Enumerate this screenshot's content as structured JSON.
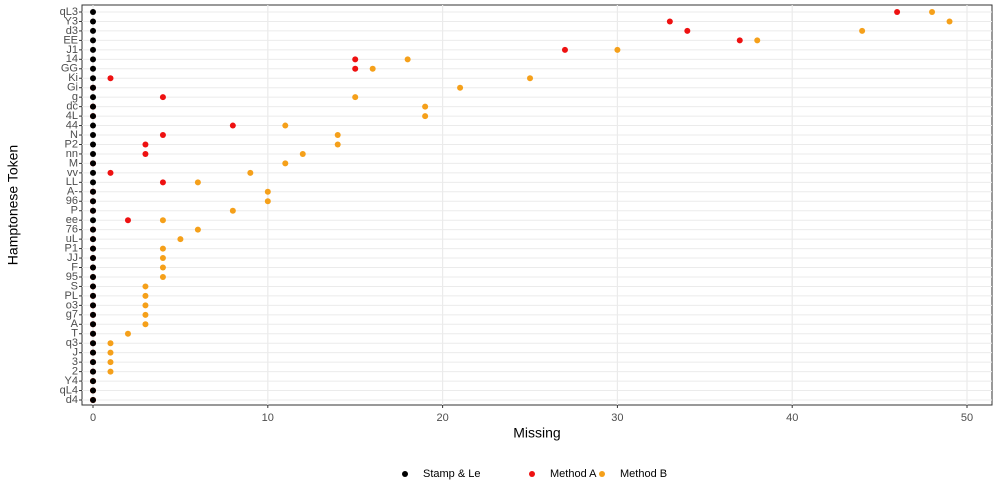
{
  "chart_data": {
    "type": "dot",
    "x_label": "Missing",
    "y_label": "Hamptonese Token",
    "categories": [
      "qL3",
      "Y3",
      "d3",
      "EE",
      "J1",
      "14",
      "GG",
      "Ki",
      "Gi",
      "g",
      "dc",
      "4L",
      "44",
      "N",
      "P2",
      "nn",
      "M",
      "vv",
      "LL",
      "A-",
      "96",
      "P",
      "ee",
      "76",
      "uL",
      "P1",
      "JJ",
      "F",
      "95",
      "S",
      "PL",
      "o3",
      "g7",
      "A",
      "T",
      "q3",
      "J",
      "3",
      "2",
      "Y4",
      "qL4",
      "d4"
    ],
    "series": [
      {
        "name": "Stamp & Le",
        "color": "#000000",
        "values": [
          0,
          0,
          0,
          0,
          0,
          0,
          0,
          0,
          0,
          0,
          0,
          0,
          0,
          0,
          0,
          0,
          0,
          0,
          0,
          0,
          0,
          0,
          0,
          0,
          0,
          0,
          0,
          0,
          0,
          0,
          0,
          0,
          0,
          0,
          0,
          0,
          0,
          0,
          0,
          0,
          0,
          0
        ]
      },
      {
        "name": "Method A",
        "color": "#ee1111",
        "values": [
          46,
          33,
          34,
          37,
          27,
          15,
          15,
          1,
          0,
          4,
          0,
          0,
          8,
          4,
          3,
          3,
          0,
          1,
          4,
          0,
          0,
          0,
          2,
          0,
          0,
          0,
          0,
          0,
          0,
          0,
          0,
          0,
          0,
          0,
          0,
          0,
          0,
          0,
          0,
          0,
          0,
          0
        ]
      },
      {
        "name": "Method B",
        "color": "#f5a01a",
        "values": [
          48,
          49,
          44,
          38,
          30,
          18,
          16,
          25,
          21,
          15,
          19,
          19,
          11,
          14,
          14,
          12,
          11,
          9,
          6,
          10,
          10,
          8,
          4,
          6,
          5,
          4,
          4,
          4,
          4,
          3,
          3,
          3,
          3,
          3,
          2,
          1,
          1,
          1,
          1,
          0,
          0,
          0
        ]
      }
    ],
    "xlim": [
      -0.63,
      51.43
    ],
    "xticks": [
      0,
      10,
      20,
      30,
      40,
      50
    ],
    "grid": true,
    "legend": "bottom"
  }
}
